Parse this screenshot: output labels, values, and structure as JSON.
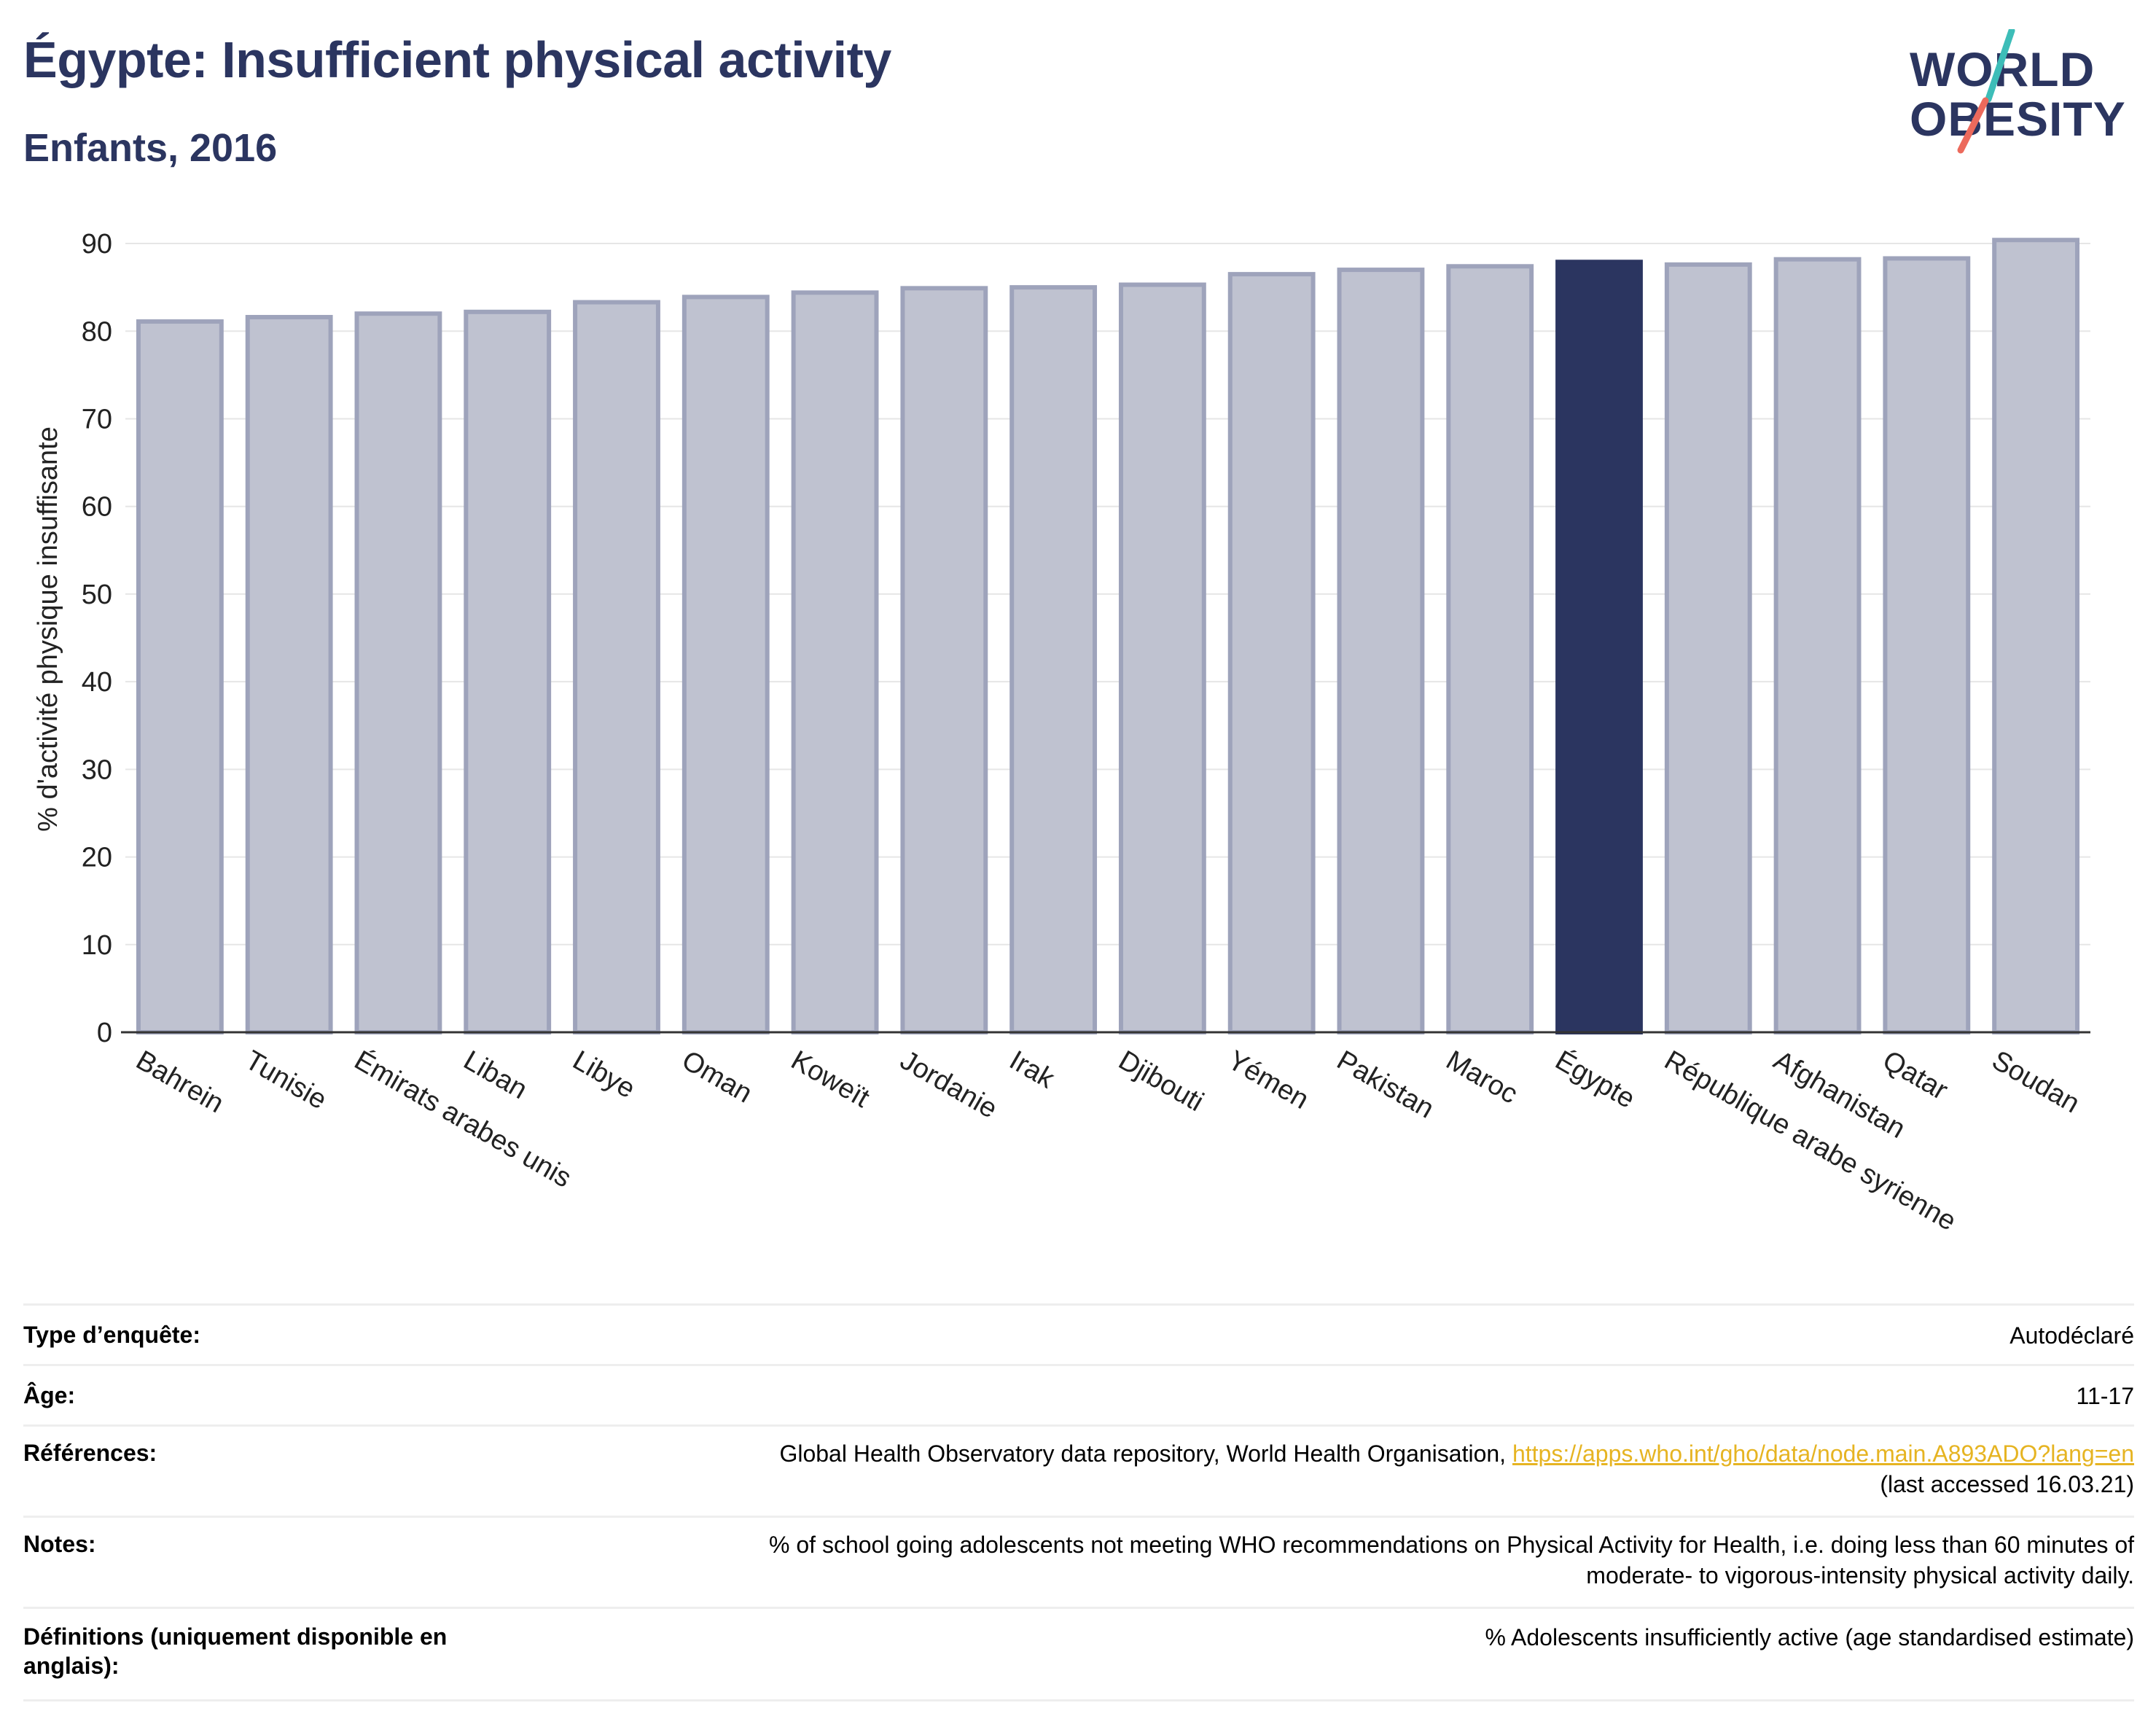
{
  "header": {
    "title": "Égypte: Insufficient physical activity",
    "subtitle": "Enfants, 2016"
  },
  "logo": {
    "line1": "WORLD",
    "line2": "OBESITY",
    "colors": {
      "text": "#2b3560",
      "slash_teal": "#3dbdb8",
      "slash_coral": "#ec6a5c"
    }
  },
  "colors": {
    "bar": "#bfc2d0",
    "bar_border": "#9ea3bb",
    "highlight": "#2b3560",
    "grid": "#e6e6e6",
    "link": "#e6b422"
  },
  "chart_data": {
    "type": "bar",
    "categories": [
      "Bahrein",
      "Tunisie",
      "Émirats arabes unis",
      "Liban",
      "Libye",
      "Oman",
      "Koweït",
      "Jordanie",
      "Irak",
      "Djibouti",
      "Yémen",
      "Pakistan",
      "Maroc",
      "Égypte",
      "République arabe syrienne",
      "Afghanistan",
      "Qatar",
      "Soudan"
    ],
    "values": [
      81.1,
      81.6,
      82.0,
      82.2,
      83.3,
      83.9,
      84.4,
      84.9,
      85.0,
      85.3,
      86.5,
      87.0,
      87.4,
      87.9,
      87.6,
      88.2,
      88.3,
      90.4
    ],
    "highlight": "Égypte",
    "title": "Égypte: Insufficient physical activity",
    "subtitle": "Enfants, 2016",
    "xlabel": "",
    "ylabel": "% d'activité physique insuffisante",
    "ylim": [
      0,
      92
    ],
    "yticks": [
      0,
      10,
      20,
      30,
      40,
      50,
      60,
      70,
      80,
      90
    ],
    "grid": true
  },
  "meta": {
    "rows": [
      {
        "label": "Type d’enquête:",
        "value": "Autodéclaré"
      },
      {
        "label": "Âge:",
        "value": "11-17"
      },
      {
        "label": "Références:",
        "value_pre": "Global Health Observatory data repository, World Health Organisation, ",
        "link": "https://apps.who.int/gho/data/node.main.A893ADO?lang=en",
        "value_post": "(last accessed 16.03.21)"
      },
      {
        "label": "Notes:",
        "value": "% of school going adolescents not meeting WHO recommendations on Physical Activity for Health, i.e. doing less than 60 minutes of",
        "value_line2": "moderate- to vigorous-intensity physical activity daily."
      },
      {
        "label": "Définitions (uniquement disponible en anglais):",
        "value": "% Adolescents insufficiently active (age standardised estimate)"
      }
    ]
  }
}
